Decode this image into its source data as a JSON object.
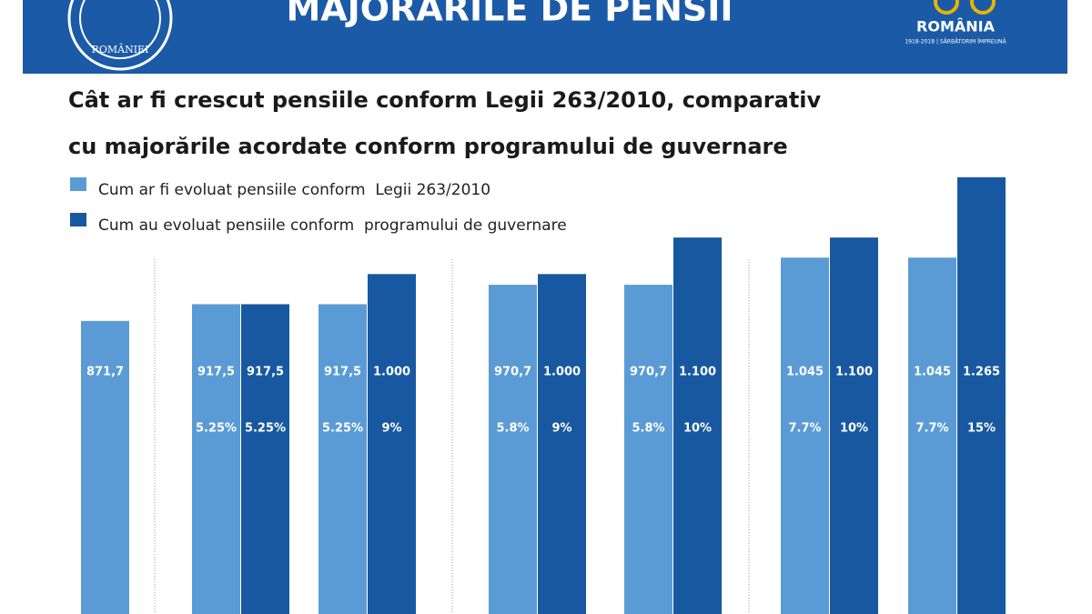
{
  "header": {
    "title": "MAJORĂRILE DE PENSII",
    "logo_text": "ROMÂNIEI",
    "brand": "ROMÂNIA",
    "brand_tagline": "1918-2018 | SĂRBĂTORIM ÎMPREUNĂ"
  },
  "chart_data": {
    "type": "bar",
    "title": [
      "Cât ar fi crescut pensiile conform Legii 263/2010, comparativ",
      "cu majorările acordate conform programului de guvernare"
    ],
    "categories": [
      null,
      null,
      null,
      null,
      null,
      null,
      null
    ],
    "series": [
      {
        "name": "Cum ar fi evoluat pensiile conform  Legii 263/2010",
        "color": "#5b9bd5",
        "values": [
          871.7,
          917.5,
          917.5,
          970.7,
          970.7,
          1045,
          1045
        ],
        "value_labels": [
          "871,7",
          "917,5",
          "917,5",
          "970,7",
          "970,7",
          "1.045",
          "1.045"
        ],
        "increase": [
          null,
          5.25,
          5.25,
          5.8,
          5.8,
          7.7,
          7.7
        ],
        "increase_labels": [
          null,
          "5.25%",
          "5.25%",
          "5.8%",
          "5.8%",
          "7.7%",
          "7.7%"
        ]
      },
      {
        "name": "Cum au evoluat pensiile conform  programului de guvernare",
        "color": "#1858a0",
        "values": [
          null,
          917.5,
          1000,
          1000,
          1100,
          1100,
          1265
        ],
        "value_labels": [
          null,
          "917,5",
          "1.000",
          "1.000",
          "1.100",
          "1.100",
          "1.265"
        ],
        "increase": [
          null,
          5.25,
          9,
          9,
          10,
          10,
          15
        ],
        "increase_labels": [
          null,
          "5.25%",
          "9%",
          "9%",
          "10%",
          "10%",
          "15%"
        ]
      }
    ]
  }
}
